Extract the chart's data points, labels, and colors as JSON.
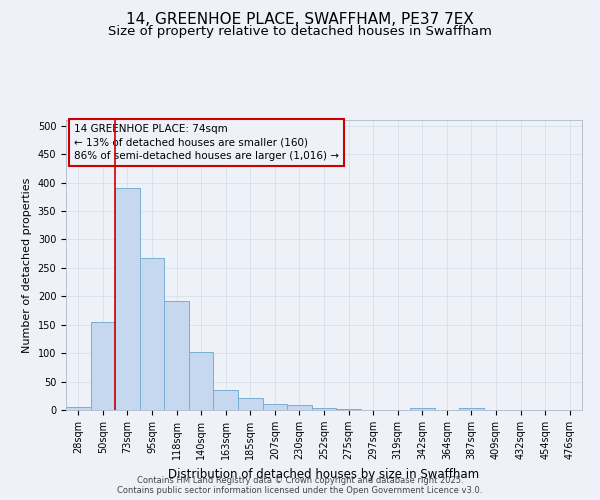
{
  "title": "14, GREENHOE PLACE, SWAFFHAM, PE37 7EX",
  "subtitle": "Size of property relative to detached houses in Swaffham",
  "xlabel": "Distribution of detached houses by size in Swaffham",
  "ylabel": "Number of detached properties",
  "categories": [
    "28sqm",
    "50sqm",
    "73sqm",
    "95sqm",
    "118sqm",
    "140sqm",
    "163sqm",
    "185sqm",
    "207sqm",
    "230sqm",
    "252sqm",
    "275sqm",
    "297sqm",
    "319sqm",
    "342sqm",
    "364sqm",
    "387sqm",
    "409sqm",
    "432sqm",
    "454sqm",
    "476sqm"
  ],
  "values": [
    6,
    155,
    390,
    268,
    192,
    102,
    36,
    21,
    10,
    9,
    4,
    2,
    0,
    0,
    3,
    0,
    3,
    0,
    0,
    0,
    0
  ],
  "bar_color": "#c5d8f0",
  "bar_edge_color": "#7aaed4",
  "grid_color": "#d0dde8",
  "background_color": "#eef2f8",
  "plot_bg_color": "#eef2f8",
  "annotation_box_text": "14 GREENHOE PLACE: 74sqm\n← 13% of detached houses are smaller (160)\n86% of semi-detached houses are larger (1,016) →",
  "annotation_box_color": "#cc0000",
  "annotation_box_fill": "#eef2f8",
  "property_line_x": 1.5,
  "property_line_color": "#cc0000",
  "ylim": [
    0,
    510
  ],
  "yticks": [
    0,
    50,
    100,
    150,
    200,
    250,
    300,
    350,
    400,
    450,
    500
  ],
  "footer_line1": "Contains HM Land Registry data © Crown copyright and database right 2025.",
  "footer_line2": "Contains public sector information licensed under the Open Government Licence v3.0.",
  "title_fontsize": 11,
  "subtitle_fontsize": 9.5,
  "tick_fontsize": 7,
  "ylabel_fontsize": 8,
  "xlabel_fontsize": 8.5,
  "annotation_fontsize": 7.5,
  "footer_fontsize": 6
}
